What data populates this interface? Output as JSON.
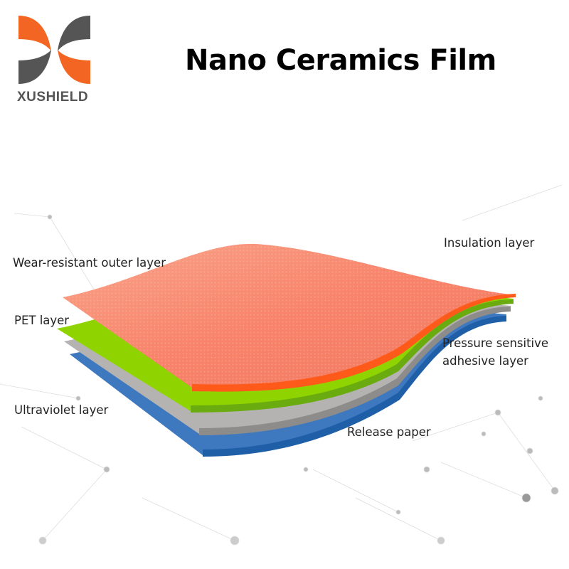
{
  "logo": {
    "brand": "XUSHIELD",
    "colors": {
      "orange": "#f26522",
      "gray": "#555555"
    }
  },
  "title": "Nano Ceramics Film",
  "labels": {
    "wear": "Wear-resistant outer layer",
    "pet": "PET layer",
    "uv": "Ultraviolet layer",
    "insulation": "Insulation layer",
    "psa1": "Pressure sensitive",
    "psa2": "adhesive layer",
    "release": "Release paper"
  },
  "layer_colors": {
    "top": "#f7876a",
    "edge": "#ff5a1a",
    "pet": "#8fd400",
    "gray": "#b5b3b1",
    "blue": "#3e78bf"
  }
}
